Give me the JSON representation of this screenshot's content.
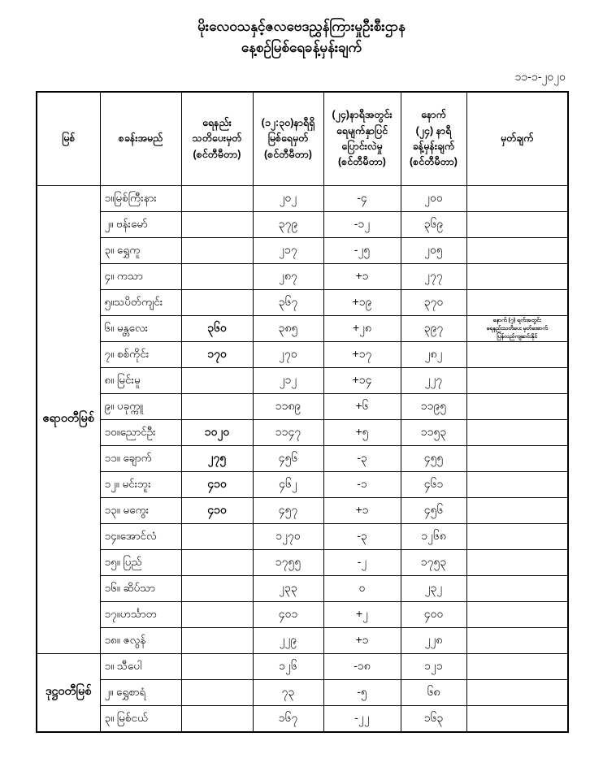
{
  "title": {
    "line1": "မိုးလေဝသနှင့်ဇလဗေဒညွှန်ကြားမှုဦးစီးဌာန",
    "line2": "နေ့စဉ်မြစ်ရေခန့်မှန်းချက်"
  },
  "date": "၁၁-၁-၂၀၂၀",
  "table": {
    "headers": {
      "river": "မြစ်",
      "station": "စခန်းအမည်",
      "warning": "ရေနည်း\nသတိပေးမှတ်\n(စင်တီမီတာ)",
      "level": "(၁၂:၃၀)နာရီရှိ\nမြစ်ရေမှတ်\n(စင်တီမီတာ)",
      "change": "(၂၄)နာရီအတွင်း\nရေမျက်နှာပြင်\nပြောင်းလဲမှု\n(စင်တီမီတာ)",
      "forecast": "နောက်\n(၂၄) နာရီ\nခန့်မှန်းချက်\n(စင်တီမီတာ)",
      "remark": "မှတ်ချက်"
    },
    "groups": [
      {
        "river": "ဧရာဝတီမြစ်",
        "rows": [
          {
            "station": "၁။မြစ်ကြီးနား",
            "warning": "",
            "level": "၂၀၂",
            "change": "-၄",
            "forecast": "၂၀၀",
            "remark": ""
          },
          {
            "station": "၂။ ဗန်းမော်",
            "warning": "",
            "level": "၃၇၉",
            "change": "-၁၂",
            "forecast": "၃၆၉",
            "remark": ""
          },
          {
            "station": "၃။ ရွှေကူ",
            "warning": "",
            "level": "၂၁၇",
            "change": "-၂၅",
            "forecast": "၂၀၅",
            "remark": ""
          },
          {
            "station": "၄။ ကသာ",
            "warning": "",
            "level": "၂၈၇",
            "change": "+၁",
            "forecast": "၂၇၇",
            "remark": ""
          },
          {
            "station": "၅။သပိတ်ကျင်း",
            "warning": "",
            "level": "၃၆၇",
            "change": "+၁၉",
            "forecast": "၃၇၀",
            "remark": ""
          },
          {
            "station": "၆။ မန္တလေး",
            "warning": "၃၆၀",
            "level": "၃၈၅",
            "change": "+၂၈",
            "forecast": "၃၉၇",
            "remark": "နောက် (၇) ရက်အတွင်း\nရေနည်းသတိပေး မှတ်အောက်\nပြန်လည်ကျဆင်းနိုင်"
          },
          {
            "station": "၇။ စစ်ကိုင်း",
            "warning": "၁၇၀",
            "level": "၂၇၀",
            "change": "+၁၇",
            "forecast": "၂၈၂",
            "remark": ""
          },
          {
            "station": "၈။ မြင်းမူ",
            "warning": "",
            "level": "၂၁၂",
            "change": "+၁၄",
            "forecast": "၂၂၇",
            "remark": ""
          },
          {
            "station": "၉။ ပခုက္ကူ",
            "warning": "",
            "level": "၁၁၈၉",
            "change": "+၆",
            "forecast": "၁၁၉၅",
            "remark": ""
          },
          {
            "station": "၁၀။ညောင်ဦး",
            "warning": "၁၀၂၀",
            "level": "၁၁၄၇",
            "change": "+၅",
            "forecast": "၁၁၅၃",
            "remark": ""
          },
          {
            "station": "၁၁။ ချောက်",
            "warning": "၂၇၅",
            "level": "၄၅၆",
            "change": "-၃",
            "forecast": "၄၅၅",
            "remark": ""
          },
          {
            "station": "၁၂။ မင်းဘူး",
            "warning": "၄၁၀",
            "level": "၄၆၂",
            "change": "-၁",
            "forecast": "၄၆၁",
            "remark": ""
          },
          {
            "station": "၁၃။ မကွေး",
            "warning": "၄၁၀",
            "level": "၄၅၇",
            "change": "+၁",
            "forecast": "၄၅၆",
            "remark": ""
          },
          {
            "station": "၁၄။အောင်လံ",
            "warning": "",
            "level": "၁၂၇၀",
            "change": "-၃",
            "forecast": "၁၂၆၈",
            "remark": ""
          },
          {
            "station": "၁၅။ ပြည်",
            "warning": "",
            "level": "၁၇၅၅",
            "change": "-၂",
            "forecast": "၁၇၅၃",
            "remark": ""
          },
          {
            "station": "၁၆။ ဆိပ်သာ",
            "warning": "",
            "level": "၂၃၃",
            "change": "၀",
            "forecast": "၂၃၂",
            "remark": ""
          },
          {
            "station": "၁၇။ဟင်္သာတ",
            "warning": "",
            "level": "၄၀၁",
            "change": "+၂",
            "forecast": "၄၀၀",
            "remark": ""
          },
          {
            "station": "၁၈။ ဇလွန်",
            "warning": "",
            "level": "၂၂၉",
            "change": "+၁",
            "forecast": "၂၂၈",
            "remark": ""
          }
        ]
      },
      {
        "river": "ဒုဋ္ဌဝတီမြစ်",
        "rows": [
          {
            "station": "၁။ သီပေါ",
            "warning": "",
            "level": "၁၂၆",
            "change": "-၁၈",
            "forecast": "၁၂၁",
            "remark": ""
          },
          {
            "station": "၂။ ရွှေစာရံ",
            "warning": "",
            "level": "၇၃",
            "change": "-၅",
            "forecast": "၆၈",
            "remark": ""
          },
          {
            "station": "၃။ မြစ်ငယ်",
            "warning": "",
            "level": "၁၆၇",
            "change": "-၂၂",
            "forecast": "၁၆၃",
            "remark": ""
          }
        ]
      }
    ]
  }
}
